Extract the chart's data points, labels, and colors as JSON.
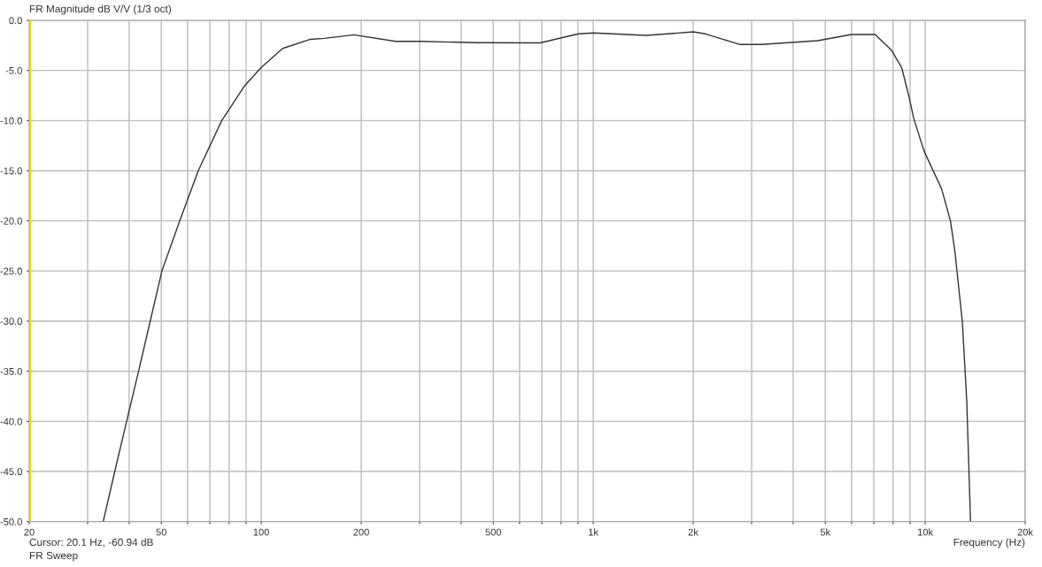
{
  "chart_data": {
    "type": "line",
    "title": "FR Magnitude dB V/V (1/3 oct)",
    "xlabel": "Frequency (Hz)",
    "log": "x",
    "grid": true,
    "marker": "none",
    "line_style": "solid",
    "annotations": [
      "Cursor: 20.1 Hz, -60.94 dB",
      "FR Sweep"
    ],
    "ref_lines": [
      {
        "axis": "x",
        "value": 20.1,
        "color": "#e8d800"
      }
    ],
    "xlim": [
      20,
      20000
    ],
    "ylim": [
      -50,
      0
    ],
    "xticks": [
      20,
      {
        "value": 30,
        "label": null
      },
      {
        "value": 40,
        "label": null
      },
      50,
      {
        "value": 60,
        "label": null
      },
      {
        "value": 70,
        "label": null
      },
      {
        "value": 80,
        "label": null
      },
      {
        "value": 90,
        "label": null
      },
      100,
      200,
      {
        "value": 300,
        "label": null
      },
      {
        "value": 400,
        "label": null
      },
      500,
      {
        "value": 600,
        "label": null
      },
      {
        "value": 700,
        "label": null
      },
      {
        "value": 800,
        "label": null
      },
      {
        "value": 900,
        "label": null
      },
      {
        "value": 1000,
        "label": "1k"
      },
      {
        "value": 2000,
        "label": "2k"
      },
      {
        "value": 3000,
        "label": null
      },
      {
        "value": 4000,
        "label": null
      },
      {
        "value": 5000,
        "label": "5k"
      },
      {
        "value": 6000,
        "label": null
      },
      {
        "value": 7000,
        "label": null
      },
      {
        "value": 8000,
        "label": null
      },
      {
        "value": 9000,
        "label": null
      },
      {
        "value": 10000,
        "label": "10k"
      },
      {
        "value": 20000,
        "label": "20k"
      }
    ],
    "yticks": [
      {
        "value": 0,
        "label": "0.0"
      },
      {
        "value": -5,
        "label": "-5.0"
      },
      {
        "value": -10,
        "label": "-10.0"
      },
      {
        "value": -15,
        "label": "-15.0"
      },
      {
        "value": -20,
        "label": "-20.0"
      },
      {
        "value": -25,
        "label": "-25.0"
      },
      {
        "value": -30,
        "label": "-30.0"
      },
      {
        "value": -35,
        "label": "-35.0"
      },
      {
        "value": -40,
        "label": "-40.0"
      },
      {
        "value": -45,
        "label": "-45.0"
      },
      {
        "value": -50,
        "label": "-50.0"
      }
    ],
    "x": [
      33.4,
      36.2,
      39.3,
      42.7,
      46.3,
      50.2,
      56.8,
      64.6,
      76,
      89.2,
      100,
      116,
      140,
      155,
      190,
      254,
      302,
      450,
      691,
      902,
      1000,
      1445,
      2003,
      2178,
      2755,
      3214,
      4738,
      5998,
      7066,
      7909,
      8497,
      8947,
      9226,
      9908,
      10530,
      11200,
      11910,
      12280,
      12410,
      12930,
      13340,
      13690
    ],
    "series": [
      {
        "color": "#333333",
        "values": [
          -50,
          -45,
          -40,
          -35,
          -30,
          -25,
          -20,
          -15,
          -10,
          -6.5,
          -4.7,
          -2.8,
          -1.9,
          -1.8,
          -1.45,
          -2.1,
          -2.1,
          -2.23,
          -2.25,
          -1.35,
          -1.26,
          -1.5,
          -1.15,
          -1.35,
          -2.4,
          -2.4,
          -2.03,
          -1.41,
          -1.41,
          -2.97,
          -4.74,
          -7.68,
          -9.74,
          -13,
          -14.9,
          -16.8,
          -20,
          -23,
          -24.45,
          -30,
          -38,
          -50
        ]
      }
    ]
  }
}
